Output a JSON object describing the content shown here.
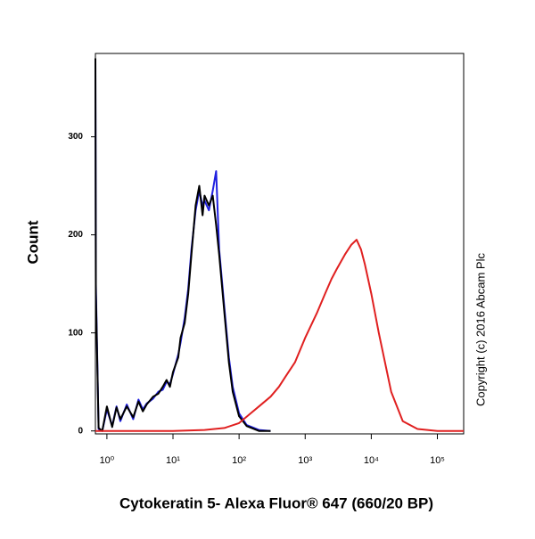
{
  "chart_data": {
    "type": "line",
    "x_label": "Cytokeratin 5- Alexa Fluor® 647 (660/20 BP)",
    "y_label": "Count",
    "annotation": "Copyright (c) 2016 Abcam Plc",
    "log_x": true,
    "xlim": [
      0.67,
      250000
    ],
    "ylim": [
      -3,
      385
    ],
    "xticks": [
      {
        "value": 1,
        "label": "10⁰"
      },
      {
        "value": 10,
        "label": "10¹"
      },
      {
        "value": 100,
        "label": "10²"
      },
      {
        "value": 1000,
        "label": "10³"
      },
      {
        "value": 10000,
        "label": "10⁴"
      },
      {
        "value": 100000,
        "label": "10⁵"
      }
    ],
    "yticks": [
      0,
      100,
      200,
      300
    ],
    "series": [
      {
        "color": "#2020e0",
        "x": [
          0.67,
          0.68,
          0.75,
          0.85,
          1,
          1.2,
          1.4,
          1.6,
          2,
          2.5,
          3,
          3.5,
          4,
          5,
          6,
          7,
          8,
          9,
          10,
          12,
          13,
          15,
          17,
          19,
          22,
          25,
          28,
          30,
          35,
          40,
          45,
          50,
          60,
          70,
          80,
          100,
          130,
          200,
          300
        ],
        "values": [
          380,
          150,
          2,
          0,
          22,
          5,
          25,
          10,
          27,
          12,
          32,
          22,
          28,
          33,
          40,
          42,
          50,
          48,
          58,
          78,
          90,
          115,
          145,
          185,
          225,
          245,
          230,
          235,
          225,
          245,
          265,
          185,
          125,
          75,
          45,
          18,
          6,
          1,
          0
        ]
      },
      {
        "color": "#000000",
        "x": [
          0.67,
          0.68,
          0.75,
          0.85,
          1,
          1.2,
          1.4,
          1.6,
          2,
          2.5,
          3,
          3.5,
          4,
          5,
          6,
          7,
          8,
          9,
          10,
          12,
          13,
          15,
          17,
          19,
          22,
          25,
          28,
          30,
          35,
          40,
          45,
          50,
          60,
          70,
          80,
          100,
          130,
          200,
          300
        ],
        "values": [
          380,
          140,
          3,
          0,
          25,
          4,
          24,
          12,
          25,
          14,
          30,
          20,
          27,
          35,
          38,
          45,
          52,
          45,
          60,
          75,
          95,
          110,
          140,
          180,
          230,
          250,
          220,
          240,
          230,
          240,
          210,
          180,
          120,
          70,
          40,
          15,
          5,
          0,
          0
        ]
      },
      {
        "color": "#e02020",
        "x": [
          0.67,
          10,
          30,
          60,
          100,
          150,
          200,
          300,
          400,
          500,
          700,
          1000,
          1500,
          2000,
          2500,
          3000,
          4000,
          5000,
          6000,
          7000,
          8000,
          10000,
          13000,
          20000,
          30000,
          50000,
          100000,
          250000
        ],
        "values": [
          0,
          0,
          1,
          3,
          8,
          18,
          25,
          35,
          45,
          55,
          70,
          95,
          120,
          140,
          155,
          165,
          180,
          190,
          195,
          185,
          170,
          140,
          100,
          40,
          10,
          2,
          0,
          0
        ]
      }
    ]
  }
}
